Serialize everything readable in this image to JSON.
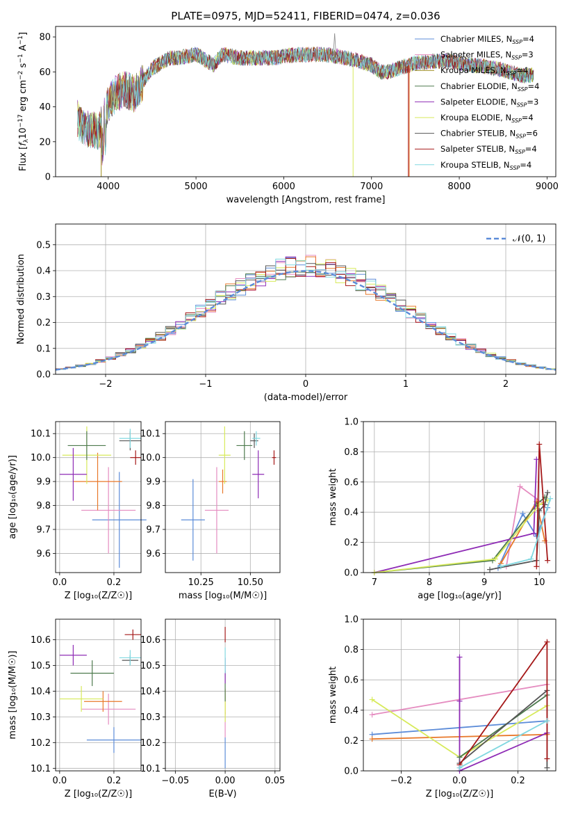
{
  "figure": {
    "title": "PLATE=0975, MJD=52411, FIBERID=0474, z=0.036",
    "colors": {
      "chabrier_miles": "#5b8bd8",
      "salpeter_miles": "#e58cc0",
      "kroupa_miles": "#9c8a1a",
      "chabrier_elodie": "#4d7a4d",
      "salpeter_elodie": "#8e2bb5",
      "kroupa_elodie": "#d7ea5a",
      "chabrier_stelib": "#555555",
      "salpeter_stelib": "#a51818",
      "kroupa_stelib": "#80d8e0",
      "orange_series": "#e8782a",
      "normal_curve": "#5b8bd8"
    }
  },
  "chart_data": [
    {
      "id": "spectrum",
      "type": "line",
      "xlabel": "wavelength [Angstrom, rest frame]",
      "ylabel": "Flux [f_λ 10^-17 erg cm^-2 s^-1 A^-1]",
      "xlim": [
        3400,
        9100
      ],
      "ylim": [
        0,
        86
      ],
      "xticks": [
        4000,
        5000,
        6000,
        7000,
        8000,
        9000
      ],
      "yticks": [
        0,
        20,
        40,
        60,
        80
      ],
      "legend_position": "top-right",
      "legend": [
        {
          "label": "Chabrier MILES, N",
          "sub": "SSP",
          "tail": "=4",
          "color_key": "chabrier_miles"
        },
        {
          "label": "Salpeter MILES, N",
          "sub": "SSP",
          "tail": "=3",
          "color_key": "salpeter_miles"
        },
        {
          "label": "Kroupa MILES, N",
          "sub": "SSP",
          "tail": "=4",
          "color_key": "kroupa_miles"
        },
        {
          "label": "Chabrier ELODIE, N",
          "sub": "SSP",
          "tail": "=4",
          "color_key": "chabrier_elodie"
        },
        {
          "label": "Salpeter ELODIE, N",
          "sub": "SSP",
          "tail": "=3",
          "color_key": "salpeter_elodie"
        },
        {
          "label": "Kroupa ELODIE, N",
          "sub": "SSP",
          "tail": "=4",
          "color_key": "kroupa_elodie"
        },
        {
          "label": "Chabrier STELIB, N",
          "sub": "SSP",
          "tail": "=6",
          "color_key": "chabrier_stelib"
        },
        {
          "label": "Salpeter STELIB, N",
          "sub": "SSP",
          "tail": "=4",
          "color_key": "salpeter_stelib"
        },
        {
          "label": "Kroupa STELIB, N",
          "sub": "SSP",
          "tail": "=4",
          "color_key": "kroupa_stelib"
        }
      ],
      "continuum": [
        [
          3650,
          33
        ],
        [
          3700,
          28
        ],
        [
          3800,
          27
        ],
        [
          3900,
          26
        ],
        [
          4000,
          42
        ],
        [
          4100,
          48
        ],
        [
          4200,
          50
        ],
        [
          4300,
          47
        ],
        [
          4400,
          55
        ],
        [
          4500,
          62
        ],
        [
          4600,
          65
        ],
        [
          4700,
          68
        ],
        [
          4800,
          68
        ],
        [
          5000,
          70
        ],
        [
          5200,
          64
        ],
        [
          5300,
          70
        ],
        [
          5500,
          68
        ],
        [
          5700,
          68
        ],
        [
          5900,
          68
        ],
        [
          6000,
          69
        ],
        [
          6200,
          70
        ],
        [
          6400,
          70
        ],
        [
          6600,
          69
        ],
        [
          6800,
          67
        ],
        [
          7000,
          64
        ],
        [
          7100,
          60
        ],
        [
          7200,
          60
        ],
        [
          7300,
          62
        ],
        [
          7500,
          65
        ],
        [
          7700,
          66
        ],
        [
          7900,
          66
        ],
        [
          8100,
          64
        ],
        [
          8300,
          63
        ],
        [
          8500,
          61
        ],
        [
          8700,
          58
        ],
        [
          8850,
          58
        ]
      ],
      "dropouts": [
        {
          "x": 3920,
          "color_key": "kroupa_miles"
        },
        {
          "x": 6790,
          "color_key": "kroupa_elodie"
        },
        {
          "x": 7430,
          "color_key": "orange_series"
        },
        {
          "x": 7420,
          "color_key": "salpeter_stelib"
        }
      ],
      "spike": {
        "x": 6580,
        "y": 82
      }
    },
    {
      "id": "residuals",
      "type": "histogram",
      "xlabel": "(data-model)/error",
      "ylabel": "Normed distribution",
      "xlim": [
        -2.5,
        2.5
      ],
      "ylim": [
        0,
        0.58
      ],
      "xticks": [
        -2,
        -1,
        0,
        1,
        2
      ],
      "yticks": [
        0,
        0.1,
        0.2,
        0.3,
        0.4,
        0.5
      ],
      "legend_position": "top-right",
      "legend_label": "𝒩(0, 1)",
      "bin_width": 0.1
    },
    {
      "id": "age_vs_Z",
      "type": "errorbar",
      "xlabel": "Z [log₁₀(Z/Z☉)]",
      "ylabel": "age [log₁₀(age/yr)]",
      "xlim": [
        -0.015,
        0.3
      ],
      "ylim": [
        9.52,
        10.15
      ],
      "xticks": [
        0,
        0.2
      ],
      "yticks": [
        9.6,
        9.7,
        9.8,
        9.9,
        10.0,
        10.1
      ],
      "points": [
        {
          "x": 0.22,
          "xerr": 0.1,
          "y": 9.74,
          "yerr": 0.2,
          "color_key": "chabrier_miles"
        },
        {
          "x": 0.18,
          "xerr": 0.1,
          "y": 9.78,
          "yerr": 0.18,
          "color_key": "salpeter_miles"
        },
        {
          "x": 0.14,
          "xerr": 0.09,
          "y": 9.9,
          "yerr": 0.12,
          "color_key": "orange_series"
        },
        {
          "x": 0.1,
          "xerr": 0.09,
          "y": 10.01,
          "yerr": 0.12,
          "color_key": "kroupa_elodie"
        },
        {
          "x": 0.1,
          "xerr": 0.07,
          "y": 10.05,
          "yerr": 0.06,
          "color_key": "chabrier_elodie"
        },
        {
          "x": 0.05,
          "xerr": 0.05,
          "y": 9.93,
          "yerr": 0.11,
          "color_key": "salpeter_elodie"
        },
        {
          "x": 0.26,
          "xerr": 0.04,
          "y": 10.07,
          "yerr": 0.04,
          "color_key": "chabrier_stelib"
        },
        {
          "x": 0.28,
          "xerr": 0.02,
          "y": 10.0,
          "yerr": 0.03,
          "color_key": "salpeter_stelib"
        },
        {
          "x": 0.26,
          "xerr": 0.04,
          "y": 10.08,
          "yerr": 0.04,
          "color_key": "kroupa_stelib"
        }
      ]
    },
    {
      "id": "age_vs_mass",
      "type": "errorbar",
      "xlabel": "mass [log₁₀(M/M☉)]",
      "ylabel": "",
      "xlim": [
        10.07,
        10.65
      ],
      "ylim": [
        9.52,
        10.15
      ],
      "xticks": [
        10.25,
        10.5
      ],
      "yticks": [
        9.6,
        9.7,
        9.8,
        9.9,
        10.0,
        10.1
      ],
      "points": [
        {
          "x": 10.21,
          "xerr": 0.06,
          "y": 9.74,
          "yerr": 0.17,
          "color_key": "chabrier_miles"
        },
        {
          "x": 10.33,
          "xerr": 0.06,
          "y": 9.78,
          "yerr": 0.18,
          "color_key": "salpeter_miles"
        },
        {
          "x": 10.36,
          "xerr": 0.02,
          "y": 9.9,
          "yerr": 0.05,
          "color_key": "orange_series"
        },
        {
          "x": 10.37,
          "xerr": 0.03,
          "y": 10.01,
          "yerr": 0.12,
          "color_key": "kroupa_elodie"
        },
        {
          "x": 10.47,
          "xerr": 0.04,
          "y": 10.05,
          "yerr": 0.06,
          "color_key": "chabrier_elodie"
        },
        {
          "x": 10.54,
          "xerr": 0.03,
          "y": 9.93,
          "yerr": 0.1,
          "color_key": "salpeter_elodie"
        },
        {
          "x": 10.52,
          "xerr": 0.02,
          "y": 10.07,
          "yerr": 0.03,
          "color_key": "chabrier_stelib"
        },
        {
          "x": 10.62,
          "xerr": 0.01,
          "y": 10.0,
          "yerr": 0.03,
          "color_key": "salpeter_stelib"
        },
        {
          "x": 10.53,
          "xerr": 0.02,
          "y": 10.08,
          "yerr": 0.03,
          "color_key": "kroupa_stelib"
        }
      ]
    },
    {
      "id": "weight_vs_age",
      "type": "line",
      "xlabel": "age  [log₁₀(age/yr)]",
      "ylabel": "mass weight",
      "xlim": [
        6.8,
        10.3
      ],
      "ylim": [
        0,
        1.0
      ],
      "xticks": [
        7,
        8,
        9,
        10
      ],
      "yticks": [
        0.0,
        0.2,
        0.4,
        0.6,
        0.8,
        1.0
      ],
      "series": [
        {
          "color_key": "chabrier_miles",
          "x": [
            9.25,
            9.7,
            9.95,
            10.15
          ],
          "y": [
            0.03,
            0.39,
            0.24,
            0.43
          ]
        },
        {
          "color_key": "salpeter_miles",
          "x": [
            9.4,
            9.65,
            10.1
          ],
          "y": [
            0.04,
            0.57,
            0.45
          ]
        },
        {
          "color_key": "orange_series",
          "x": [
            9.3,
            9.95,
            10.1
          ],
          "y": [
            0.06,
            0.47,
            0.21
          ]
        },
        {
          "color_key": "chabrier_elodie",
          "x": [
            7.0,
            9.15,
            9.95,
            10.1
          ],
          "y": [
            0.0,
            0.08,
            0.45,
            0.5
          ]
        },
        {
          "color_key": "salpeter_elodie",
          "x": [
            7.0,
            9.9,
            9.95
          ],
          "y": [
            0.0,
            0.26,
            0.75
          ]
        },
        {
          "color_key": "kroupa_elodie",
          "x": [
            7.0,
            9.2,
            10.0,
            10.15
          ],
          "y": [
            0.0,
            0.09,
            0.45,
            0.48
          ]
        },
        {
          "color_key": "chabrier_stelib",
          "x": [
            9.1,
            9.95,
            10.0,
            10.1,
            10.15
          ],
          "y": [
            0.02,
            0.08,
            0.41,
            0.45,
            0.53
          ]
        },
        {
          "color_key": "salpeter_stelib",
          "x": [
            9.95,
            10.0,
            10.15
          ],
          "y": [
            0.04,
            0.85,
            0.08
          ]
        },
        {
          "color_key": "kroupa_stelib",
          "x": [
            9.3,
            9.85,
            10.2
          ],
          "y": [
            0.04,
            0.09,
            0.49
          ]
        }
      ]
    },
    {
      "id": "mass_vs_Z",
      "type": "errorbar",
      "xlabel": "Z [log₁₀(Z/Z☉)]",
      "ylabel": "mass [log₁₀(M/M☉)]",
      "xlim": [
        -0.015,
        0.3
      ],
      "ylim": [
        10.09,
        10.68
      ],
      "xticks": [
        0,
        0.2
      ],
      "yticks": [
        10.1,
        10.2,
        10.3,
        10.4,
        10.5,
        10.6
      ],
      "points": [
        {
          "x": 0.2,
          "xerr": 0.1,
          "y": 10.21,
          "yerr": 0.05,
          "color_key": "chabrier_miles"
        },
        {
          "x": 0.18,
          "xerr": 0.1,
          "y": 10.33,
          "yerr": 0.06,
          "color_key": "salpeter_miles"
        },
        {
          "x": 0.16,
          "xerr": 0.07,
          "y": 10.36,
          "yerr": 0.04,
          "color_key": "orange_series"
        },
        {
          "x": 0.08,
          "xerr": 0.08,
          "y": 10.37,
          "yerr": 0.05,
          "color_key": "kroupa_elodie"
        },
        {
          "x": 0.12,
          "xerr": 0.08,
          "y": 10.47,
          "yerr": 0.05,
          "color_key": "chabrier_elodie"
        },
        {
          "x": 0.05,
          "xerr": 0.05,
          "y": 10.54,
          "yerr": 0.04,
          "color_key": "salpeter_elodie"
        },
        {
          "x": 0.26,
          "xerr": 0.03,
          "y": 10.52,
          "yerr": 0.02,
          "color_key": "chabrier_stelib"
        },
        {
          "x": 0.27,
          "xerr": 0.03,
          "y": 10.62,
          "yerr": 0.02,
          "color_key": "salpeter_stelib"
        },
        {
          "x": 0.26,
          "xerr": 0.04,
          "y": 10.53,
          "yerr": 0.03,
          "color_key": "kroupa_stelib"
        }
      ]
    },
    {
      "id": "mass_vs_ebv",
      "type": "errorbar",
      "xlabel": "E(B-V)",
      "ylabel": "",
      "xlim": [
        -0.06,
        0.055
      ],
      "ylim": [
        10.09,
        10.68
      ],
      "xticks": [
        -0.05,
        0.0,
        0.05
      ],
      "yticks": [
        10.1,
        10.2,
        10.3,
        10.4,
        10.5,
        10.6
      ],
      "points": [
        {
          "x": 0,
          "y": 10.16,
          "yerr": 0.06,
          "color_key": "chabrier_miles"
        },
        {
          "x": 0,
          "y": 10.27,
          "yerr": 0.05,
          "color_key": "salpeter_miles"
        },
        {
          "x": 0,
          "y": 10.36,
          "yerr": 0.05,
          "color_key": "orange_series"
        },
        {
          "x": 0,
          "y": 10.33,
          "yerr": 0.05,
          "color_key": "kroupa_elodie"
        },
        {
          "x": 0,
          "y": 10.42,
          "yerr": 0.06,
          "color_key": "chabrier_elodie"
        },
        {
          "x": 0,
          "y": 10.48,
          "yerr": 0.05,
          "color_key": "salpeter_elodie"
        },
        {
          "x": 0,
          "y": 10.52,
          "yerr": 0.05,
          "color_key": "kroupa_stelib"
        },
        {
          "x": 0,
          "y": 10.62,
          "yerr": 0.03,
          "color_key": "salpeter_stelib"
        }
      ]
    },
    {
      "id": "weight_vs_Z",
      "type": "line",
      "xlabel": "Z [log₁₀(Z/Z☉)]",
      "ylabel": "mass weight",
      "xlim": [
        -0.33,
        0.33
      ],
      "ylim": [
        0,
        1.0
      ],
      "xticks": [
        -0.2,
        0.0,
        0.2
      ],
      "yticks": [
        0.0,
        0.2,
        0.4,
        0.6,
        0.8,
        1.0
      ],
      "series": [
        {
          "color_key": "chabrier_miles",
          "x": [
            -0.3,
            0.3
          ],
          "y": [
            0.24,
            0.33
          ]
        },
        {
          "color_key": "salpeter_miles",
          "x": [
            -0.3,
            0.3
          ],
          "y": [
            0.37,
            0.57
          ]
        },
        {
          "color_key": "orange_series",
          "x": [
            -0.3,
            0.3
          ],
          "y": [
            0.21,
            0.24
          ]
        },
        {
          "color_key": "kroupa_elodie",
          "x": [
            -0.3,
            0.0,
            0.3
          ],
          "y": [
            0.47,
            0.09,
            0.43
          ]
        },
        {
          "color_key": "salpeter_elodie",
          "x": [
            0.0,
            0.0,
            0.0,
            0.3
          ],
          "y": [
            0.75,
            0.46,
            0.0,
            0.25
          ]
        },
        {
          "color_key": "chabrier_elodie",
          "x": [
            0.0,
            0.3
          ],
          "y": [
            0.09,
            0.5
          ]
        },
        {
          "color_key": "chabrier_stelib",
          "x": [
            0.0,
            0.3,
            0.3
          ],
          "y": [
            0.05,
            0.53,
            0.02
          ]
        },
        {
          "color_key": "salpeter_stelib",
          "x": [
            0.0,
            0.3,
            0.3
          ],
          "y": [
            0.04,
            0.85,
            0.08
          ]
        },
        {
          "color_key": "kroupa_stelib",
          "x": [
            0.0,
            0.3
          ],
          "y": [
            0.02,
            0.33
          ]
        }
      ]
    }
  ]
}
